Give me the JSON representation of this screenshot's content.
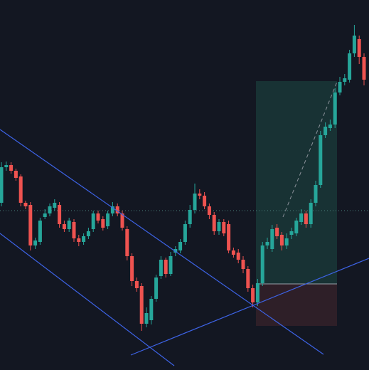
{
  "chart_data": {
    "type": "candlestick",
    "up_color": "#26a69a",
    "down_color": "#ef5350",
    "ylim": [
      0,
      520
    ],
    "open": [
      235,
      285,
      288,
      280,
      272,
      235,
      232,
      175,
      180,
      215,
      220,
      228,
      232,
      205,
      198,
      208,
      185,
      180,
      188,
      198,
      220,
      212,
      202,
      220,
      230,
      220,
      198,
      160,
      125,
      118,
      65,
      70,
      100,
      132,
      155,
      135,
      165,
      168,
      180,
      205,
      225,
      248,
      245,
      230,
      218,
      195,
      208,
      205,
      168,
      165,
      155,
      142,
      115,
      95,
      122,
      175,
      170,
      200,
      190,
      175,
      190,
      192,
      208,
      220,
      205,
      235,
      260,
      330,
      340,
      345,
      390,
      405,
      408,
      445,
      465,
      440
    ],
    "close": [
      285,
      288,
      280,
      270,
      235,
      230,
      175,
      182,
      210,
      220,
      230,
      235,
      205,
      198,
      210,
      185,
      180,
      188,
      195,
      220,
      210,
      200,
      220,
      230,
      220,
      200,
      160,
      125,
      115,
      65,
      80,
      100,
      130,
      155,
      135,
      160,
      170,
      180,
      205,
      225,
      248,
      245,
      230,
      218,
      195,
      208,
      192,
      168,
      162,
      155,
      142,
      115,
      95,
      122,
      175,
      180,
      198,
      188,
      175,
      185,
      195,
      210,
      220,
      205,
      235,
      260,
      330,
      342,
      345,
      390,
      405,
      410,
      445,
      470,
      440,
      408
    ],
    "high": [
      292,
      293,
      292,
      283,
      275,
      238,
      236,
      186,
      214,
      226,
      234,
      240,
      236,
      210,
      214,
      212,
      190,
      192,
      200,
      224,
      224,
      216,
      224,
      236,
      234,
      224,
      202,
      164,
      130,
      122,
      88,
      104,
      134,
      160,
      158,
      166,
      174,
      184,
      210,
      232,
      262,
      254,
      250,
      234,
      222,
      212,
      212,
      210,
      172,
      170,
      160,
      146,
      120,
      128,
      180,
      186,
      204,
      205,
      194,
      192,
      200,
      214,
      226,
      224,
      240,
      266,
      336,
      348,
      352,
      396,
      412,
      416,
      450,
      485,
      470,
      445
    ],
    "low": [
      230,
      280,
      276,
      266,
      230,
      226,
      168,
      170,
      176,
      212,
      216,
      224,
      200,
      194,
      194,
      180,
      174,
      176,
      184,
      194,
      206,
      196,
      198,
      216,
      216,
      196,
      154,
      118,
      110,
      55,
      60,
      64,
      96,
      128,
      130,
      132,
      160,
      164,
      176,
      200,
      220,
      240,
      226,
      212,
      190,
      190,
      188,
      164,
      158,
      150,
      136,
      110,
      88,
      90,
      118,
      170,
      166,
      184,
      168,
      170,
      184,
      188,
      204,
      200,
      200,
      230,
      256,
      326,
      336,
      340,
      386,
      400,
      404,
      440,
      430,
      400
    ]
  }
}
